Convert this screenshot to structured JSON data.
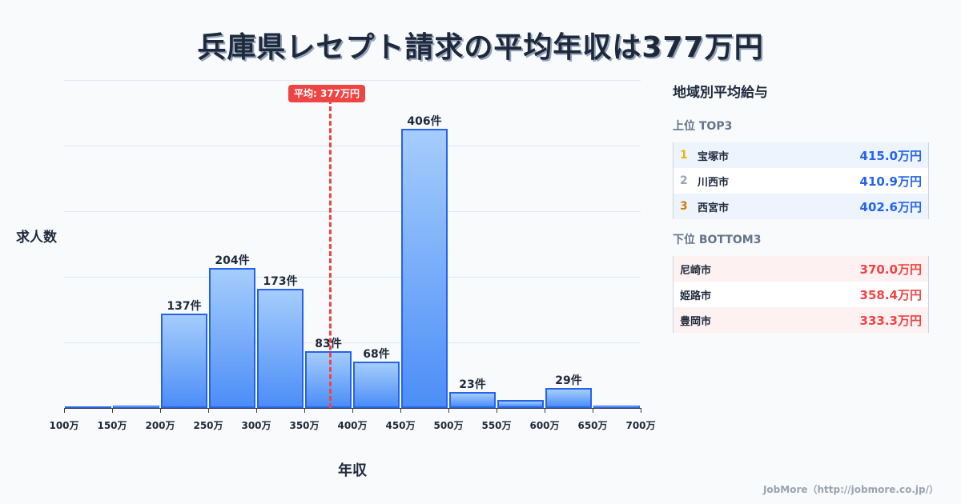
{
  "title": "兵庫県レセプト請求の平均年収は377万円",
  "chart_data": {
    "type": "bar",
    "title": "兵庫県レセプト請求の平均年収は377万円",
    "xlabel": "年収",
    "ylabel": "求人数",
    "categories": [
      "100-150万",
      "150-200万",
      "200-250万",
      "250-300万",
      "300-350万",
      "350-400万",
      "400-450万",
      "450-500万",
      "500-550万",
      "550-600万",
      "600-650万",
      "650-700万"
    ],
    "values": [
      2,
      4,
      137,
      204,
      173,
      83,
      68,
      406,
      23,
      12,
      29,
      4
    ],
    "bar_labels": [
      "",
      "",
      "137件",
      "204件",
      "173件",
      "83件",
      "68件",
      "406件",
      "23件",
      "",
      "29件",
      ""
    ],
    "x_ticks": [
      "100万",
      "150万",
      "200万",
      "250万",
      "300万",
      "350万",
      "400万",
      "450万",
      "500万",
      "550万",
      "600万",
      "650万",
      "700万"
    ],
    "xlim": [
      100,
      700
    ],
    "grid": true,
    "annotations": [
      {
        "type": "vline",
        "x": 377,
        "label": "平均: 377万円",
        "color": "#ef4444"
      }
    ],
    "bar_color": "#4c8ef7",
    "bar_edge_color": "#2563eb"
  },
  "average_badge": "平均: 377万円",
  "panel": {
    "title": "地域別平均給与",
    "top_title": "上位 TOP3",
    "top": [
      {
        "rank": "1",
        "city": "宝塚市",
        "value": "415.0万円",
        "rank_color": "#eab308"
      },
      {
        "rank": "2",
        "city": "川西市",
        "value": "410.9万円",
        "rank_color": "#9ca3af"
      },
      {
        "rank": "3",
        "city": "西宮市",
        "value": "402.6万円",
        "rank_color": "#d97706"
      }
    ],
    "bottom_title": "下位 BOTTOM3",
    "bottom": [
      {
        "city": "尼崎市",
        "value": "370.0万円"
      },
      {
        "city": "姫路市",
        "value": "358.4万円"
      },
      {
        "city": "豊岡市",
        "value": "333.3万円"
      }
    ]
  },
  "footer": "JobMore（http://jobmore.co.jp/）"
}
